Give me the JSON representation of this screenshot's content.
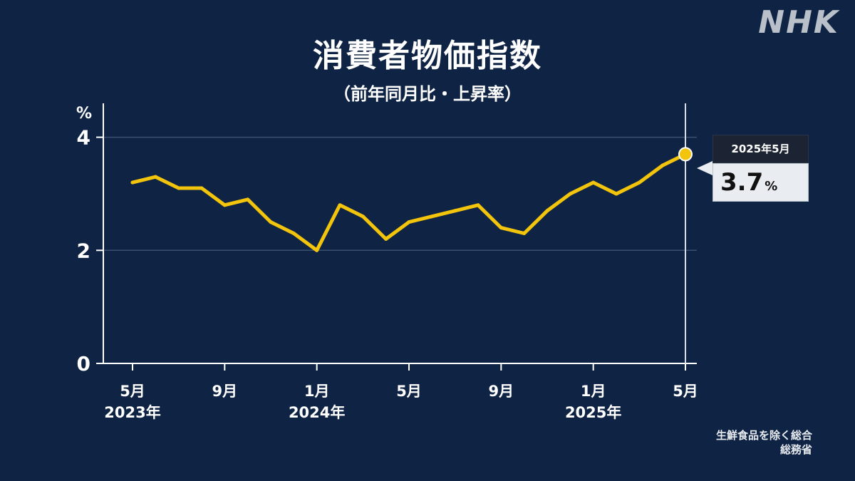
{
  "logo": "NHK",
  "header": {
    "title": "消費者物価指数",
    "subtitle": "（前年同月比・上昇率）"
  },
  "callout": {
    "date": "2025年5月",
    "value": "3.7",
    "unit": "%"
  },
  "notes": {
    "line1": "生鮮食品を除く総合",
    "line2": "総務省"
  },
  "colors": {
    "background": "#0f2444",
    "line": "#f2c40c",
    "grid": "#3a4f6e",
    "axis": "#ffffff"
  },
  "chart_data": {
    "type": "line",
    "ylabel": "%",
    "ylim": [
      0,
      4.6
    ],
    "yticks": [
      0,
      2,
      4
    ],
    "grid": true,
    "x_tick_labels": [
      {
        "month": "5月",
        "year": "2023年",
        "index": 0
      },
      {
        "month": "9月",
        "year": "",
        "index": 4
      },
      {
        "month": "1月",
        "year": "2024年",
        "index": 8
      },
      {
        "month": "5月",
        "year": "",
        "index": 12
      },
      {
        "month": "9月",
        "year": "",
        "index": 16
      },
      {
        "month": "1月",
        "year": "2025年",
        "index": 20
      },
      {
        "month": "5月",
        "year": "",
        "index": 24
      }
    ],
    "x": [
      "2023-05",
      "2023-06",
      "2023-07",
      "2023-08",
      "2023-09",
      "2023-10",
      "2023-11",
      "2023-12",
      "2024-01",
      "2024-02",
      "2024-03",
      "2024-04",
      "2024-05",
      "2024-06",
      "2024-07",
      "2024-08",
      "2024-09",
      "2024-10",
      "2024-11",
      "2024-12",
      "2025-01",
      "2025-02",
      "2025-03",
      "2025-04",
      "2025-05"
    ],
    "series": [
      {
        "values": [
          3.2,
          3.3,
          3.1,
          3.1,
          2.8,
          2.9,
          2.5,
          2.3,
          2.0,
          2.8,
          2.6,
          2.2,
          2.5,
          2.6,
          2.7,
          2.8,
          2.4,
          2.3,
          2.7,
          3.0,
          3.2,
          3.0,
          3.2,
          3.5,
          3.7
        ]
      }
    ],
    "highlight_index": 24
  }
}
